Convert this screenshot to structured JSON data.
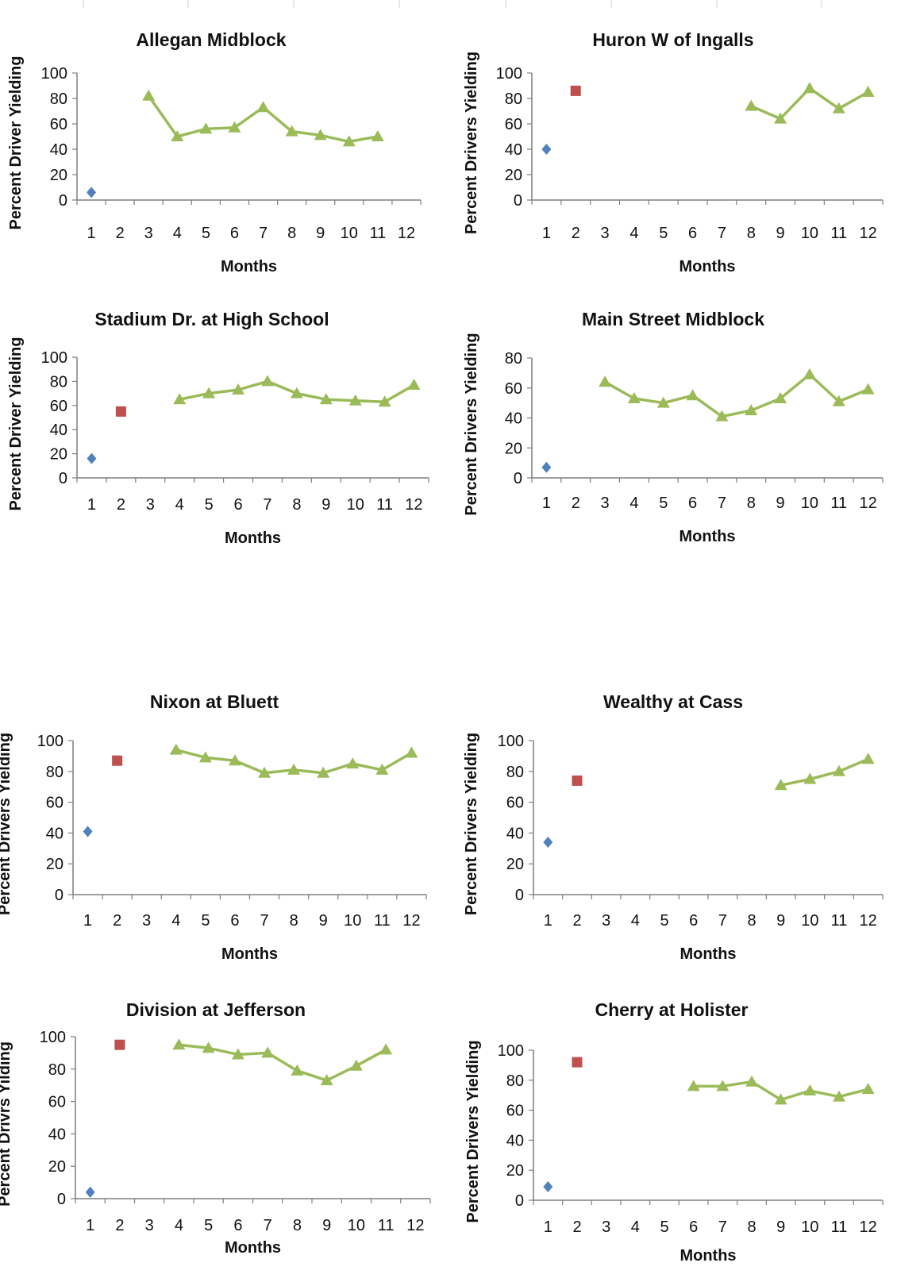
{
  "colors": {
    "baseline": "#4f81bd",
    "phase2": "#c0504d",
    "treatment": "#9bbb59"
  },
  "chart_data": [
    {
      "type": "line",
      "title": "Allegan Midblock",
      "xlabel": "Months",
      "ylabel": "Percent Driver Yielding",
      "categories": [
        "1",
        "2",
        "3",
        "4",
        "5",
        "6",
        "7",
        "8",
        "9",
        "10",
        "11",
        "12"
      ],
      "ylim": [
        0,
        100
      ],
      "yticks": [
        "0",
        "20",
        "40",
        "60",
        "80",
        "100"
      ],
      "series": [
        {
          "marker": "diamond",
          "points": [
            [
              1,
              6
            ]
          ]
        },
        {
          "marker": "square",
          "points": []
        },
        {
          "marker": "triangle",
          "points": [
            [
              3,
              82
            ],
            [
              4,
              50
            ],
            [
              5,
              56
            ],
            [
              6,
              57
            ],
            [
              7,
              73
            ],
            [
              8,
              54
            ],
            [
              9,
              51
            ],
            [
              10,
              46
            ],
            [
              11,
              50
            ]
          ]
        }
      ]
    },
    {
      "type": "line",
      "title": "Huron W of Ingalls",
      "xlabel": "Months",
      "ylabel": "Percent Drivers Yielding",
      "categories": [
        "1",
        "2",
        "3",
        "4",
        "5",
        "6",
        "7",
        "8",
        "9",
        "10",
        "11",
        "12"
      ],
      "ylim": [
        0,
        100
      ],
      "yticks": [
        "0",
        "20",
        "40",
        "60",
        "80",
        "100"
      ],
      "series": [
        {
          "marker": "diamond",
          "points": [
            [
              1,
              40
            ]
          ]
        },
        {
          "marker": "square",
          "points": [
            [
              2,
              86
            ]
          ]
        },
        {
          "marker": "triangle",
          "points": [
            [
              8,
              74
            ],
            [
              9,
              64
            ],
            [
              10,
              88
            ],
            [
              11,
              72
            ],
            [
              12,
              85
            ]
          ]
        }
      ]
    },
    {
      "type": "line",
      "title": "Stadium Dr. at High School",
      "xlabel": "Months",
      "ylabel": "Percent Driver Yielding",
      "categories": [
        "1",
        "2",
        "3",
        "4",
        "5",
        "6",
        "7",
        "8",
        "9",
        "10",
        "11",
        "12"
      ],
      "ylim": [
        0,
        100
      ],
      "yticks": [
        "0",
        "20",
        "40",
        "60",
        "80",
        "100"
      ],
      "series": [
        {
          "marker": "diamond",
          "points": [
            [
              1,
              16
            ]
          ]
        },
        {
          "marker": "square",
          "points": [
            [
              2,
              55
            ]
          ]
        },
        {
          "marker": "triangle",
          "points": [
            [
              4,
              65
            ],
            [
              5,
              70
            ],
            [
              6,
              73
            ],
            [
              7,
              80
            ],
            [
              8,
              70
            ],
            [
              9,
              65
            ],
            [
              10,
              64
            ],
            [
              11,
              63
            ],
            [
              12,
              77
            ]
          ]
        }
      ]
    },
    {
      "type": "line",
      "title": "Main Street Midblock",
      "xlabel": "Months",
      "ylabel": "Percent Drivers Yielding",
      "categories": [
        "1",
        "2",
        "3",
        "4",
        "5",
        "6",
        "7",
        "8",
        "9",
        "10",
        "11",
        "12"
      ],
      "ylim": [
        0,
        80
      ],
      "yticks": [
        "0",
        "20",
        "40",
        "60",
        "80"
      ],
      "series": [
        {
          "marker": "diamond",
          "points": [
            [
              1,
              7
            ]
          ]
        },
        {
          "marker": "square",
          "points": []
        },
        {
          "marker": "triangle",
          "points": [
            [
              3,
              64
            ],
            [
              4,
              53
            ],
            [
              5,
              50
            ],
            [
              6,
              55
            ],
            [
              7,
              41
            ],
            [
              8,
              45
            ],
            [
              9,
              53
            ],
            [
              10,
              69
            ],
            [
              11,
              51
            ],
            [
              12,
              59
            ]
          ]
        }
      ]
    },
    {
      "type": "line",
      "title": "Nixon at Bluett",
      "xlabel": "Months",
      "ylabel": "Percent Drivers Yielding",
      "categories": [
        "1",
        "2",
        "3",
        "4",
        "5",
        "6",
        "7",
        "8",
        "9",
        "10",
        "11",
        "12"
      ],
      "ylim": [
        0,
        100
      ],
      "yticks": [
        "0",
        "20",
        "40",
        "60",
        "80",
        "100"
      ],
      "series": [
        {
          "marker": "diamond",
          "points": [
            [
              1,
              41
            ]
          ]
        },
        {
          "marker": "square",
          "points": [
            [
              2,
              87
            ]
          ]
        },
        {
          "marker": "triangle",
          "points": [
            [
              4,
              94
            ],
            [
              5,
              89
            ],
            [
              6,
              87
            ],
            [
              7,
              79
            ],
            [
              8,
              81
            ],
            [
              9,
              79
            ],
            [
              10,
              85
            ],
            [
              11,
              81
            ],
            [
              12,
              92
            ]
          ]
        }
      ]
    },
    {
      "type": "line",
      "title": "Wealthy at Cass",
      "xlabel": "Months",
      "ylabel": "Percent Drivers Yielding",
      "categories": [
        "1",
        "2",
        "3",
        "4",
        "5",
        "6",
        "7",
        "8",
        "9",
        "10",
        "11",
        "12"
      ],
      "ylim": [
        0,
        100
      ],
      "yticks": [
        "0",
        "20",
        "40",
        "60",
        "80",
        "100"
      ],
      "series": [
        {
          "marker": "diamond",
          "points": [
            [
              1,
              34
            ]
          ]
        },
        {
          "marker": "square",
          "points": [
            [
              2,
              74
            ]
          ]
        },
        {
          "marker": "triangle",
          "points": [
            [
              9,
              71
            ],
            [
              10,
              75
            ],
            [
              11,
              80
            ],
            [
              12,
              88
            ]
          ]
        }
      ]
    },
    {
      "type": "line",
      "title": "Division at Jefferson",
      "xlabel": "Months",
      "ylabel": "Percent Drivrs Yilding",
      "categories": [
        "1",
        "2",
        "3",
        "4",
        "5",
        "6",
        "7",
        "8",
        "9",
        "10",
        "11",
        "12"
      ],
      "ylim": [
        0,
        100
      ],
      "yticks": [
        "0",
        "20",
        "40",
        "60",
        "80",
        "100"
      ],
      "series": [
        {
          "marker": "diamond",
          "points": [
            [
              1,
              4
            ]
          ]
        },
        {
          "marker": "square",
          "points": [
            [
              2,
              95
            ]
          ]
        },
        {
          "marker": "triangle",
          "points": [
            [
              4,
              95
            ],
            [
              5,
              93
            ],
            [
              6,
              89
            ],
            [
              7,
              90
            ],
            [
              8,
              79
            ],
            [
              9,
              73
            ],
            [
              10,
              82
            ],
            [
              11,
              92
            ]
          ]
        }
      ]
    },
    {
      "type": "line",
      "title": "Cherry at Holister",
      "xlabel": "Months",
      "ylabel": "Percent Drivers Yielding",
      "categories": [
        "1",
        "2",
        "3",
        "4",
        "5",
        "6",
        "7",
        "8",
        "9",
        "10",
        "11",
        "12"
      ],
      "ylim": [
        0,
        100
      ],
      "yticks": [
        "0",
        "20",
        "40",
        "60",
        "80",
        "100"
      ],
      "series": [
        {
          "marker": "diamond",
          "points": [
            [
              1,
              9
            ]
          ]
        },
        {
          "marker": "square",
          "points": [
            [
              2,
              92
            ]
          ]
        },
        {
          "marker": "triangle",
          "points": [
            [
              6,
              76
            ],
            [
              7,
              76
            ],
            [
              8,
              79
            ],
            [
              9,
              67
            ],
            [
              10,
              73
            ],
            [
              11,
              69
            ],
            [
              12,
              74
            ]
          ]
        }
      ]
    }
  ]
}
